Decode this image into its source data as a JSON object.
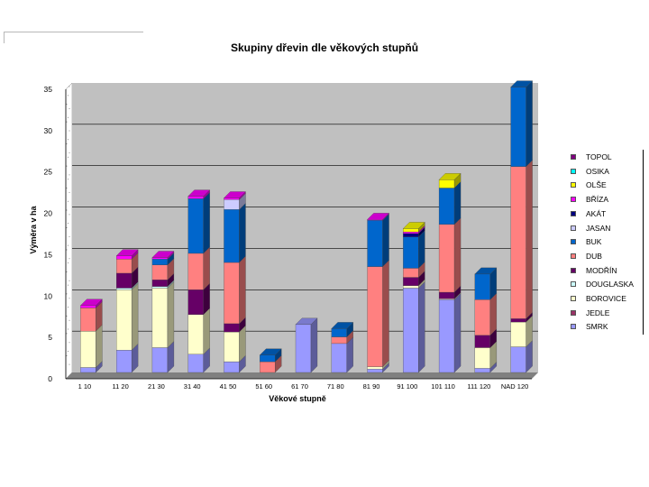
{
  "chart_data": {
    "type": "bar",
    "stacked": true,
    "title": "Skupiny dřevin dle věkových stupňů",
    "xlabel": "Věkové stupně",
    "ylabel": "Výměra v ha",
    "ylim": [
      0,
      35
    ],
    "yticks": [
      0,
      5,
      10,
      15,
      20,
      25,
      30,
      35
    ],
    "grid": true,
    "legend_position": "right",
    "categories": [
      "1 10",
      "11 20",
      "21 30",
      "31 40",
      "41 50",
      "51 60",
      "61 70",
      "71 80",
      "81 90",
      "91 100",
      "101 110",
      "111 120",
      "NAD 120"
    ],
    "series": [
      {
        "name": "SMRK",
        "color": "#9999ff",
        "values": [
          0.6,
          2.7,
          3.0,
          2.2,
          1.3,
          0,
          5.8,
          3.5,
          0.4,
          10.2,
          8.8,
          0.5,
          3.1
        ]
      },
      {
        "name": "JEDLE",
        "color": "#993366",
        "values": [
          0,
          0,
          0,
          0,
          0,
          0,
          0,
          0,
          0,
          0,
          0,
          0,
          0
        ]
      },
      {
        "name": "BOROVICE",
        "color": "#ffffcc",
        "values": [
          4.4,
          7.3,
          7.2,
          4.8,
          3.6,
          0,
          0,
          0,
          0.3,
          0.3,
          0.1,
          2.5,
          3.0
        ]
      },
      {
        "name": "DOUGLASKA",
        "color": "#ccffff",
        "values": [
          0,
          0.2,
          0.2,
          0,
          0,
          0,
          0,
          0,
          0,
          0,
          0,
          0,
          0
        ]
      },
      {
        "name": "MODŘÍN",
        "color": "#660066",
        "values": [
          0,
          1.8,
          0.8,
          3.0,
          1.0,
          0,
          0,
          0,
          0,
          1.0,
          0.8,
          1.5,
          0.4
        ]
      },
      {
        "name": "DUB",
        "color": "#ff8080",
        "values": [
          2.8,
          1.7,
          1.8,
          4.4,
          7.4,
          1.3,
          0,
          0.8,
          12.1,
          1.1,
          8.2,
          4.3,
          18.4
        ]
      },
      {
        "name": "BUK",
        "color": "#0066cc",
        "values": [
          0,
          0,
          0.7,
          6.6,
          6.4,
          0.8,
          0,
          1.0,
          5.6,
          3.8,
          4.4,
          3.1,
          9.6
        ]
      },
      {
        "name": "JASAN",
        "color": "#ccccff",
        "values": [
          0,
          0,
          0,
          0,
          1.2,
          0,
          0,
          0,
          0,
          0,
          0,
          0,
          0
        ]
      },
      {
        "name": "AKÁT",
        "color": "#000080",
        "values": [
          0,
          0,
          0,
          0,
          0,
          0,
          0,
          0,
          0,
          0.4,
          0,
          0,
          0
        ]
      },
      {
        "name": "BŘÍZA",
        "color": "#ff00ff",
        "values": [
          0.3,
          0.4,
          0.2,
          0.3,
          0.2,
          0,
          0,
          0,
          0.1,
          0.2,
          0,
          0,
          0
        ]
      },
      {
        "name": "OLŠE",
        "color": "#ffff00",
        "values": [
          0,
          0,
          0,
          0,
          0,
          0,
          0,
          0,
          0,
          0.4,
          1.0,
          0,
          0
        ]
      },
      {
        "name": "OSIKA",
        "color": "#00ffff",
        "values": [
          0,
          0,
          0,
          0,
          0,
          0,
          0,
          0,
          0,
          0,
          0,
          0,
          0
        ]
      },
      {
        "name": "TOPOL",
        "color": "#800080",
        "values": [
          0,
          0,
          0,
          0,
          0,
          0,
          0,
          0,
          0,
          0,
          0,
          0,
          0
        ]
      }
    ]
  },
  "colors": {
    "wall": "#c0c0c0",
    "floor": "#808080",
    "gridline": "#000000"
  }
}
